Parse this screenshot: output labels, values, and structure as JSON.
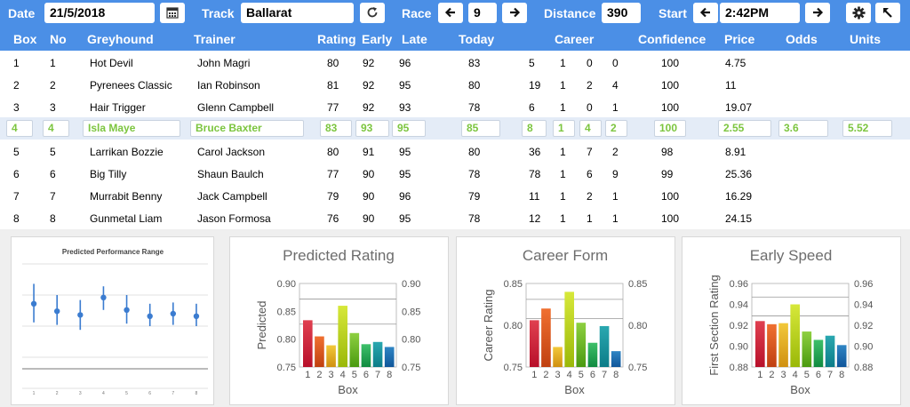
{
  "toolbar": {
    "date_label": "Date",
    "date_value": "21/5/2018",
    "calendar_icon": "calendar-icon",
    "track_label": "Track",
    "track_value": "Ballarat",
    "refresh_icon": "refresh-icon",
    "race_label": "Race",
    "race_value": "9",
    "distance_label": "Distance",
    "distance_value": "390",
    "start_label": "Start",
    "start_value": "2:42PM",
    "settings_icon": "gear-icon",
    "back_icon": "return-arrow-icon",
    "accent_color": "#4b8fe6"
  },
  "table": {
    "headers": [
      "Box",
      "No",
      "Greyhound",
      "Trainer",
      "Rating",
      "Early",
      "Late",
      "Today",
      "Career",
      "Confidence",
      "Price",
      "Odds",
      "Units"
    ],
    "rows": [
      {
        "box": "1",
        "no": "1",
        "greyhound": "Hot Devil",
        "trainer": "John Magri",
        "rating": "80",
        "early": "92",
        "late": "96",
        "today": "83",
        "c1": "5",
        "c2": "1",
        "c3": "0",
        "c4": "0",
        "confidence": "100",
        "price": "4.75",
        "odds": "",
        "units": ""
      },
      {
        "box": "2",
        "no": "2",
        "greyhound": "Pyrenees Classic",
        "trainer": "Ian Robinson",
        "rating": "81",
        "early": "92",
        "late": "95",
        "today": "80",
        "c1": "19",
        "c2": "1",
        "c3": "2",
        "c4": "4",
        "confidence": "100",
        "price": "11",
        "odds": "",
        "units": ""
      },
      {
        "box": "3",
        "no": "3",
        "greyhound": "Hair Trigger",
        "trainer": "Glenn Campbell",
        "rating": "77",
        "early": "92",
        "late": "93",
        "today": "78",
        "c1": "6",
        "c2": "1",
        "c3": "0",
        "c4": "1",
        "confidence": "100",
        "price": "19.07",
        "odds": "",
        "units": ""
      },
      {
        "box": "4",
        "no": "4",
        "greyhound": "Isla Maye",
        "trainer": "Bruce Baxter",
        "rating": "83",
        "early": "93",
        "late": "95",
        "today": "85",
        "c1": "8",
        "c2": "1",
        "c3": "4",
        "c4": "2",
        "confidence": "100",
        "price": "2.55",
        "odds": "3.6",
        "units": "5.52",
        "selected": true
      },
      {
        "box": "5",
        "no": "5",
        "greyhound": "Larrikan Bozzie",
        "trainer": "Carol Jackson",
        "rating": "80",
        "early": "91",
        "late": "95",
        "today": "80",
        "c1": "36",
        "c2": "1",
        "c3": "7",
        "c4": "2",
        "confidence": "98",
        "price": "8.91",
        "odds": "",
        "units": ""
      },
      {
        "box": "6",
        "no": "6",
        "greyhound": "Big Tilly",
        "trainer": "Shaun Baulch",
        "rating": "77",
        "early": "90",
        "late": "95",
        "today": "78",
        "c1": "78",
        "c2": "1",
        "c3": "6",
        "c4": "9",
        "confidence": "99",
        "price": "25.36",
        "odds": "",
        "units": ""
      },
      {
        "box": "7",
        "no": "7",
        "greyhound": "Murrabit Benny",
        "trainer": "Jack Campbell",
        "rating": "79",
        "early": "90",
        "late": "96",
        "today": "79",
        "c1": "11",
        "c2": "1",
        "c3": "2",
        "c4": "1",
        "confidence": "100",
        "price": "16.29",
        "odds": "",
        "units": ""
      },
      {
        "box": "8",
        "no": "8",
        "greyhound": "Gunmetal Liam",
        "trainer": "Jason Formosa",
        "rating": "76",
        "early": "90",
        "late": "95",
        "today": "78",
        "c1": "12",
        "c2": "1",
        "c3": "1",
        "c4": "1",
        "confidence": "100",
        "price": "24.15",
        "odds": "",
        "units": ""
      }
    ],
    "selected_color": "#7cc53f"
  },
  "chart_data": [
    {
      "type": "scatter",
      "title": "Predicted Performance Range",
      "x": [
        1,
        2,
        3,
        4,
        5,
        6,
        7,
        8
      ],
      "xticks": [
        "1",
        "2",
        "3",
        "4",
        "5",
        "6",
        "7",
        "8"
      ],
      "y": [
        0.68,
        0.62,
        0.59,
        0.73,
        0.63,
        0.58,
        0.6,
        0.58
      ],
      "y_low": [
        0.53,
        0.51,
        0.47,
        0.63,
        0.52,
        0.5,
        0.51,
        0.5
      ],
      "y_high": [
        0.84,
        0.75,
        0.71,
        0.82,
        0.75,
        0.68,
        0.69,
        0.68
      ],
      "ylim": [
        0,
        1
      ],
      "grid": true
    },
    {
      "type": "bar",
      "title": "Predicted Rating",
      "xlabel": "Box",
      "ylabel": "Predicted",
      "categories": [
        "1",
        "2",
        "3",
        "4",
        "5",
        "6",
        "7",
        "8"
      ],
      "values": [
        0.834,
        0.805,
        0.789,
        0.86,
        0.811,
        0.791,
        0.795,
        0.786
      ],
      "yticks": [
        "0.75",
        "0.80",
        "0.85",
        "0.90"
      ],
      "ylim": [
        0.75,
        0.9
      ],
      "ref_lines": [
        0.827,
        0.872
      ]
    },
    {
      "type": "bar",
      "title": "Career Form",
      "xlabel": "Box",
      "ylabel": "Career Rating",
      "categories": [
        "1",
        "2",
        "3",
        "4",
        "5",
        "6",
        "7",
        "8"
      ],
      "values": [
        0.806,
        0.82,
        0.774,
        0.84,
        0.803,
        0.779,
        0.799,
        0.769
      ],
      "yticks": [
        "0.75",
        "0.80",
        "0.85"
      ],
      "ylim": [
        0.75,
        0.85
      ],
      "ref_lines": [
        0.808,
        0.831
      ]
    },
    {
      "type": "bar",
      "title": "Early Speed",
      "xlabel": "Box",
      "ylabel": "First Section Rating",
      "categories": [
        "1",
        "2",
        "3",
        "4",
        "5",
        "6",
        "7",
        "8"
      ],
      "values": [
        0.924,
        0.921,
        0.922,
        0.94,
        0.914,
        0.906,
        0.91,
        0.901
      ],
      "yticks": [
        "0.88",
        "0.90",
        "0.92",
        "0.94",
        "0.96"
      ],
      "ylim": [
        0.88,
        0.96
      ],
      "ref_lines": [
        0.929,
        0.947
      ]
    }
  ],
  "bar_colors": [
    [
      "#e04050",
      "#b8102a"
    ],
    [
      "#f07030",
      "#c04010"
    ],
    [
      "#f2c83a",
      "#d09010"
    ],
    [
      "#d7e83a",
      "#9ab808"
    ],
    [
      "#8ed040",
      "#4a9a10"
    ],
    [
      "#3ec06a",
      "#108a40"
    ],
    [
      "#2aa8b0",
      "#0c7c88"
    ],
    [
      "#2f85c4",
      "#10569a"
    ]
  ]
}
